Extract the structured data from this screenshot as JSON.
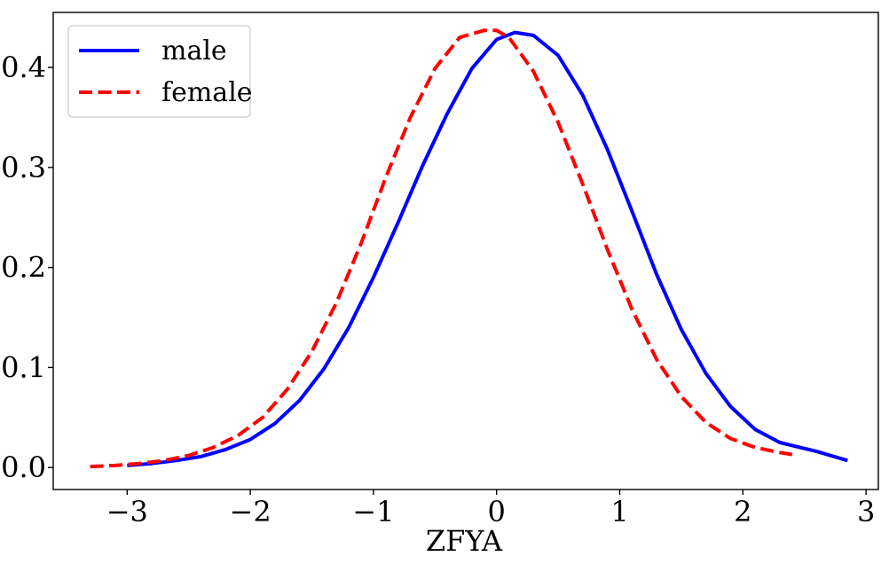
{
  "chart_data": {
    "type": "line",
    "title": "",
    "xlabel": "ZFYA",
    "ylabel": "",
    "xlim": [
      -3.6,
      3.1
    ],
    "ylim": [
      -0.022,
      0.455
    ],
    "xticks": [
      -3,
      -2,
      -1,
      0,
      1,
      2,
      3
    ],
    "xtick_labels": [
      "−3",
      "−2",
      "−1",
      "0",
      "1",
      "2",
      "3"
    ],
    "yticks": [
      0.0,
      0.1,
      0.2,
      0.3,
      0.4
    ],
    "ytick_labels": [
      "0.0",
      "0.1",
      "0.2",
      "0.3",
      "0.4"
    ],
    "grid": false,
    "legend": {
      "placement": "top-left"
    },
    "series": [
      {
        "name": "male",
        "color": "#0000ff",
        "style": "solid",
        "x": [
          -3.0,
          -2.8,
          -2.6,
          -2.4,
          -2.2,
          -2.0,
          -1.8,
          -1.6,
          -1.4,
          -1.2,
          -1.0,
          -0.8,
          -0.6,
          -0.4,
          -0.2,
          0.0,
          0.15,
          0.3,
          0.5,
          0.7,
          0.9,
          1.1,
          1.3,
          1.5,
          1.7,
          1.9,
          2.1,
          2.3,
          2.4,
          2.6,
          2.85
        ],
        "y": [
          0.002,
          0.004,
          0.007,
          0.011,
          0.018,
          0.028,
          0.044,
          0.067,
          0.099,
          0.14,
          0.19,
          0.245,
          0.302,
          0.354,
          0.399,
          0.428,
          0.435,
          0.432,
          0.412,
          0.372,
          0.318,
          0.256,
          0.193,
          0.138,
          0.094,
          0.061,
          0.038,
          0.025,
          0.022,
          0.016,
          0.007
        ]
      },
      {
        "name": "female",
        "color": "#ff0000",
        "style": "dashed",
        "x": [
          -3.3,
          -3.1,
          -2.9,
          -2.7,
          -2.5,
          -2.3,
          -2.1,
          -1.9,
          -1.7,
          -1.5,
          -1.3,
          -1.1,
          -0.9,
          -0.7,
          -0.5,
          -0.3,
          -0.1,
          0.0,
          0.1,
          0.3,
          0.5,
          0.7,
          0.9,
          1.1,
          1.3,
          1.5,
          1.7,
          1.9,
          2.1,
          2.3,
          2.4
        ],
        "y": [
          0.001,
          0.002,
          0.004,
          0.007,
          0.012,
          0.02,
          0.032,
          0.05,
          0.078,
          0.116,
          0.165,
          0.224,
          0.29,
          0.35,
          0.399,
          0.43,
          0.437,
          0.437,
          0.43,
          0.396,
          0.345,
          0.283,
          0.218,
          0.158,
          0.108,
          0.071,
          0.045,
          0.029,
          0.02,
          0.015,
          0.013
        ]
      }
    ]
  }
}
